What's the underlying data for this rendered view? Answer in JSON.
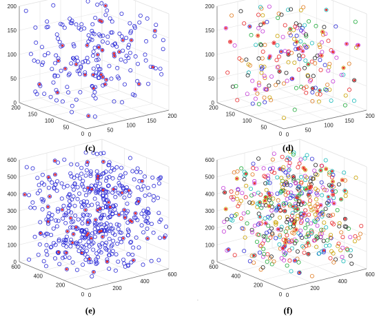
{
  "colors": {
    "blue": "#2b2bd6",
    "red": "#e8282b",
    "axis": "#707070",
    "grid": "#e2e2e2",
    "multi": [
      "#2b2bd6",
      "#e8282b",
      "#1faa3a",
      "#e07a1f",
      "#c43bd8",
      "#16b9b9",
      "#222222",
      "#c9a100"
    ]
  },
  "figure": {
    "stray_mark": "."
  },
  "chart_data": [
    {
      "type": "scatter3d",
      "caption": "(c)",
      "xlim": [
        0,
        200
      ],
      "ylim": [
        0,
        200
      ],
      "zlim": [
        0,
        200
      ],
      "x_ticks": [
        "0",
        "50",
        "100",
        "150",
        "200"
      ],
      "y_ticks": [
        "0",
        "50",
        "100",
        "150",
        "200"
      ],
      "z_ticks": [
        "0",
        "50",
        "100",
        "150",
        "200"
      ],
      "grid": true,
      "series": [
        {
          "marker": "circle",
          "color": "blue",
          "count": 200
        },
        {
          "marker": "asterisk",
          "color": "red",
          "count": 30
        }
      ]
    },
    {
      "type": "scatter3d",
      "caption": "(d)",
      "xlim": [
        0,
        200
      ],
      "ylim": [
        0,
        200
      ],
      "zlim": [
        0,
        200
      ],
      "x_ticks": [
        "0",
        "50",
        "100",
        "150",
        "200"
      ],
      "y_ticks": [
        "0",
        "50",
        "100",
        "150",
        "200"
      ],
      "z_ticks": [
        "0",
        "50",
        "100",
        "150",
        "200"
      ],
      "grid": true,
      "series": [
        {
          "marker": "circle",
          "color": "multi",
          "count": 200
        },
        {
          "marker": "asterisk",
          "color": "red",
          "count": 30
        }
      ]
    },
    {
      "type": "scatter3d",
      "caption": "(e)",
      "xlim": [
        0,
        600
      ],
      "ylim": [
        0,
        600
      ],
      "zlim": [
        0,
        600
      ],
      "x_ticks": [
        "0",
        "200",
        "400",
        "600"
      ],
      "y_ticks": [
        "0",
        "200",
        "400",
        "600"
      ],
      "z_ticks": [
        "0",
        "100",
        "200",
        "300",
        "400",
        "500",
        "600"
      ],
      "grid": true,
      "series": [
        {
          "marker": "circle",
          "color": "blue",
          "count": 500
        },
        {
          "marker": "asterisk",
          "color": "red",
          "count": 60
        }
      ]
    },
    {
      "type": "scatter3d",
      "caption": "(f)",
      "xlim": [
        0,
        600
      ],
      "ylim": [
        0,
        600
      ],
      "zlim": [
        0,
        600
      ],
      "x_ticks": [
        "0",
        "200",
        "400",
        "600"
      ],
      "y_ticks": [
        "0",
        "200",
        "400",
        "600"
      ],
      "z_ticks": [
        "0",
        "100",
        "200",
        "300",
        "400",
        "500",
        "600"
      ],
      "grid": true,
      "series": [
        {
          "marker": "circle",
          "color": "multi",
          "count": 500
        },
        {
          "marker": "asterisk",
          "color": "red",
          "count": 60
        }
      ]
    }
  ]
}
